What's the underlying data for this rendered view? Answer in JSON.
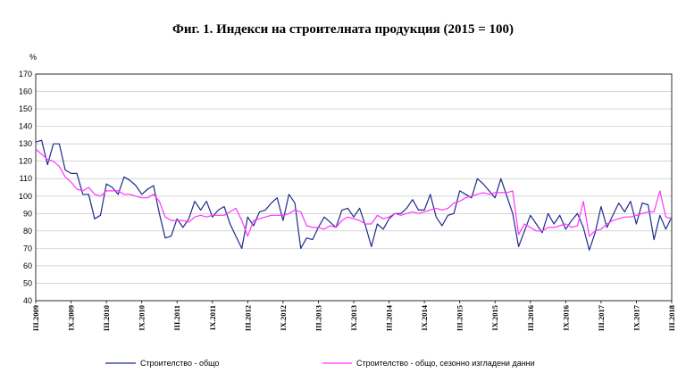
{
  "chart_data": {
    "type": "line",
    "title": "Фиг. 1. Индекси на строителната продукция (2015 = 100)",
    "ylabel": "%",
    "ylim": [
      40,
      170
    ],
    "ystep": 10,
    "grid": true,
    "legend_position": "bottom",
    "x_tick_labels": [
      "III.2009",
      "IX.2009",
      "III.2010",
      "IX.2010",
      "III.2011",
      "IX.2011",
      "III.2012",
      "IX.2012",
      "III.2013",
      "IX.2013",
      "III.2014",
      "IX.2014",
      "III.2015",
      "IX.2015",
      "III.2016",
      "IX.2016",
      "III.2017",
      "IX.2017",
      "III.2018"
    ],
    "series": [
      {
        "name": "Строителство - общо",
        "color": "#1f2a8c",
        "values": [
          131,
          132,
          118,
          130,
          130,
          115,
          113,
          113,
          101,
          101,
          87,
          89,
          107,
          105,
          101,
          111,
          109,
          106,
          101,
          104,
          106,
          90,
          76,
          77,
          87,
          82,
          87,
          97,
          92,
          97,
          88,
          92,
          94,
          84,
          77,
          70,
          88,
          83,
          91,
          92,
          96,
          99,
          86,
          101,
          96,
          70,
          76,
          75,
          82,
          88,
          85,
          82,
          92,
          93,
          88,
          93,
          83,
          71,
          84,
          81,
          87,
          90,
          90,
          93,
          98,
          92,
          92,
          101,
          88,
          83,
          89,
          90,
          103,
          101,
          99,
          110,
          107,
          103,
          99,
          110,
          100,
          90,
          71,
          80,
          89,
          84,
          79,
          90,
          84,
          89,
          81,
          86,
          90,
          82,
          69,
          79,
          94,
          82,
          89,
          96,
          91,
          97,
          84,
          96,
          95,
          75,
          89,
          81,
          88
        ]
      },
      {
        "name": "Строителство - общо, сезонно изгладени данни",
        "color": "#ff33ff",
        "values": [
          127,
          124,
          121,
          120,
          117,
          111,
          108,
          104,
          103,
          105,
          101,
          100,
          103,
          103,
          103,
          101,
          101,
          100,
          99,
          99,
          101,
          97,
          88,
          86,
          86,
          86,
          85,
          88,
          89,
          88,
          89,
          89,
          89,
          91,
          93,
          86,
          77,
          86,
          87,
          88,
          89,
          89,
          89,
          90,
          92,
          91,
          83,
          82,
          82,
          81,
          83,
          82,
          86,
          88,
          87,
          86,
          84,
          84,
          89,
          87,
          88,
          90,
          89,
          90,
          91,
          90,
          91,
          92,
          93,
          92,
          93,
          96,
          97,
          99,
          100,
          101,
          102,
          101,
          102,
          102,
          102,
          103,
          78,
          84,
          82,
          80,
          80,
          82,
          82,
          83,
          84,
          82,
          83,
          97,
          77,
          80,
          81,
          84,
          86,
          87,
          88,
          88,
          89,
          90,
          91,
          91,
          103,
          88,
          87
        ]
      }
    ]
  }
}
